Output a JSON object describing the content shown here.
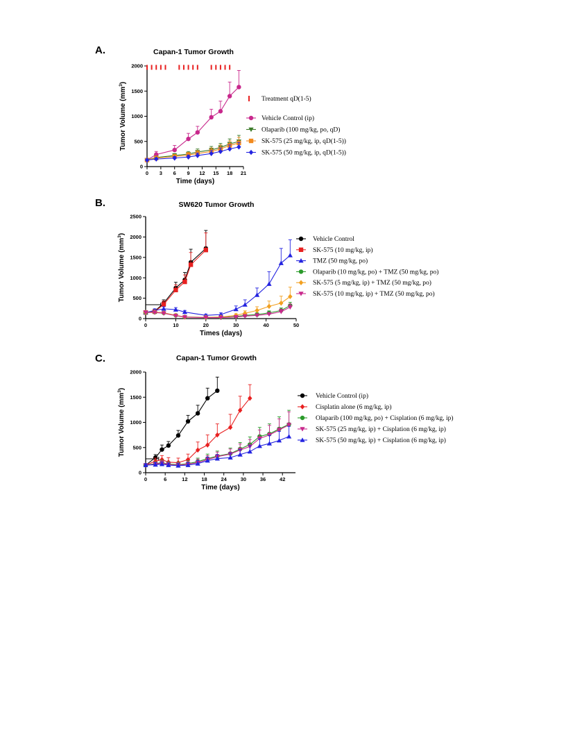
{
  "chart_data": [
    {
      "panel": "A.",
      "type": "line",
      "title": "Capan-1 Tumor Growth",
      "xlabel": "Time (days)",
      "ylabel_main": "Tumor Volume (mm",
      "ylabel_sup": "3",
      "ylabel_end": ")",
      "xlim": [
        0,
        21
      ],
      "ylim": [
        0,
        2000
      ],
      "xticks": [
        0,
        3,
        6,
        9,
        12,
        15,
        18,
        21
      ],
      "yticks": [
        0,
        500,
        1000,
        1500,
        2000
      ],
      "treatment_days": [
        0,
        1,
        2,
        3,
        4,
        7,
        8,
        9,
        10,
        11,
        14,
        15,
        16,
        17,
        18
      ],
      "treatment_label": "Treatment qD(1-5)",
      "series": [
        {
          "name": "Vehicle Control (ip)",
          "color": "#c8288c",
          "marker": "circle",
          "x": [
            0,
            2,
            6,
            9,
            11,
            14,
            16,
            18,
            20
          ],
          "y": [
            130,
            240,
            330,
            550,
            680,
            980,
            1100,
            1400,
            1580
          ],
          "err": [
            20,
            60,
            90,
            110,
            120,
            160,
            200,
            280,
            330
          ]
        },
        {
          "name": "Olaparib (100 mg/kg, po, qD)",
          "color": "#3a7a28",
          "marker": "triangle-down",
          "x": [
            0,
            2,
            6,
            9,
            11,
            14,
            16,
            18,
            20
          ],
          "y": [
            130,
            180,
            220,
            250,
            290,
            330,
            380,
            450,
            500
          ],
          "err": [
            20,
            30,
            40,
            50,
            60,
            70,
            80,
            100,
            120
          ]
        },
        {
          "name": "SK-575 (25 mg/kg, ip, qD(1-5))",
          "color": "#f28a1e",
          "marker": "square",
          "x": [
            0,
            2,
            6,
            9,
            11,
            14,
            16,
            18,
            20
          ],
          "y": [
            130,
            170,
            200,
            230,
            260,
            300,
            350,
            420,
            470
          ],
          "err": [
            20,
            30,
            40,
            50,
            60,
            70,
            80,
            90,
            110
          ]
        },
        {
          "name": "SK-575 (50 mg/kg, ip, qD(1-5))",
          "color": "#2323e0",
          "marker": "diamond",
          "x": [
            0,
            2,
            6,
            9,
            11,
            14,
            16,
            18,
            20
          ],
          "y": [
            130,
            150,
            170,
            190,
            220,
            260,
            300,
            350,
            390
          ],
          "err": [
            20,
            25,
            30,
            40,
            50,
            60,
            70,
            80,
            90
          ]
        }
      ]
    },
    {
      "panel": "B.",
      "type": "line",
      "title": "SW620 Tumor Growth",
      "xlabel": "Times (days)",
      "ylabel_main": "Tumor Volume (mm",
      "ylabel_sup": "3",
      "ylabel_end": ")",
      "xlim": [
        0,
        50
      ],
      "ylim": [
        0,
        2500
      ],
      "xticks": [
        0,
        10,
        20,
        30,
        40,
        50
      ],
      "yticks": [
        0,
        500,
        1000,
        1500,
        2000,
        2500
      ],
      "dosing_bar_days": [
        0,
        5
      ],
      "series": [
        {
          "name": "Vehicle Control",
          "color": "#000000",
          "marker": "circle",
          "x": [
            0,
            3,
            6,
            10,
            13,
            15,
            20
          ],
          "y": [
            150,
            180,
            380,
            750,
            950,
            1380,
            1720
          ],
          "err": [
            30,
            40,
            80,
            140,
            180,
            320,
            440
          ]
        },
        {
          "name": "SK-575 (10 mg/kg, ip)",
          "color": "#e82020",
          "marker": "square",
          "x": [
            0,
            3,
            6,
            10,
            13,
            15,
            20
          ],
          "y": [
            150,
            170,
            350,
            700,
            900,
            1320,
            1680
          ],
          "err": [
            30,
            40,
            80,
            130,
            170,
            300,
            420
          ]
        },
        {
          "name": "TMZ (50 mg/kg, po)",
          "color": "#2323e0",
          "marker": "triangle-up",
          "x": [
            0,
            3,
            6,
            10,
            13,
            20,
            25,
            30,
            33,
            37,
            41,
            45,
            48
          ],
          "y": [
            150,
            200,
            240,
            220,
            160,
            80,
            100,
            230,
            340,
            580,
            850,
            1360,
            1550
          ],
          "err": [
            30,
            40,
            50,
            50,
            40,
            30,
            40,
            80,
            120,
            170,
            300,
            360,
            380
          ]
        },
        {
          "name": "Olaparib (10 mg/kg, po) + TMZ (50 mg/kg, po)",
          "color": "#2a9a2a",
          "marker": "circle",
          "x": [
            0,
            3,
            6,
            10,
            13,
            20,
            25,
            30,
            33,
            37,
            41,
            45,
            48
          ],
          "y": [
            150,
            160,
            140,
            80,
            40,
            30,
            30,
            50,
            80,
            100,
            140,
            200,
            320
          ],
          "err": [
            30,
            30,
            30,
            20,
            15,
            10,
            10,
            20,
            30,
            40,
            50,
            60,
            80
          ]
        },
        {
          "name": "SK-575 (5 mg/kg, ip) + TMZ (50 mg/kg, po)",
          "color": "#f2a020",
          "marker": "diamond",
          "x": [
            0,
            3,
            6,
            10,
            13,
            20,
            25,
            30,
            33,
            37,
            41,
            45,
            48
          ],
          "y": [
            150,
            160,
            140,
            80,
            40,
            30,
            40,
            80,
            130,
            200,
            300,
            380,
            540
          ],
          "err": [
            30,
            30,
            30,
            20,
            15,
            10,
            20,
            40,
            60,
            90,
            130,
            170,
            230
          ]
        },
        {
          "name": "SK-575 (10 mg/kg, ip) + TMZ (50 mg/kg, po)",
          "color": "#c8288c",
          "marker": "triangle-down",
          "x": [
            0,
            3,
            6,
            10,
            13,
            20,
            25,
            30,
            33,
            37,
            41,
            45,
            48
          ],
          "y": [
            150,
            150,
            130,
            70,
            35,
            25,
            25,
            40,
            60,
            80,
            110,
            170,
            280
          ],
          "err": [
            30,
            30,
            30,
            20,
            15,
            10,
            10,
            20,
            25,
            30,
            40,
            60,
            80
          ]
        }
      ]
    },
    {
      "panel": "C.",
      "type": "line",
      "title": "Capan-1 Tumor Growth",
      "xlabel": "Time (days)",
      "ylabel_main": "Tumor Volume (mm",
      "ylabel_sup": "3",
      "ylabel_end": ")",
      "xlim": [
        0,
        46
      ],
      "ylim": [
        0,
        2000
      ],
      "xticks": [
        0,
        6,
        12,
        18,
        24,
        30,
        36,
        42
      ],
      "yticks": [
        0,
        500,
        1000,
        1500,
        2000
      ],
      "dosing_bar_days": [
        0,
        4
      ],
      "series": [
        {
          "name": "Vehicle Control (ip)",
          "color": "#000000",
          "marker": "circle",
          "x": [
            0,
            3,
            5,
            7,
            10,
            13,
            16,
            19,
            22
          ],
          "y": [
            150,
            300,
            460,
            540,
            740,
            1020,
            1180,
            1480,
            1630
          ],
          "err": [
            30,
            60,
            90,
            80,
            100,
            120,
            160,
            200,
            270
          ]
        },
        {
          "name": "Cisplatin alone (6 mg/kg, ip)",
          "color": "#e82020",
          "marker": "diamond",
          "x": [
            0,
            3,
            5,
            7,
            10,
            13,
            16,
            19,
            22,
            26,
            29,
            32
          ],
          "y": [
            150,
            230,
            260,
            210,
            200,
            260,
            450,
            550,
            750,
            900,
            1240,
            1480
          ],
          "err": [
            30,
            60,
            80,
            90,
            90,
            110,
            160,
            200,
            220,
            260,
            280,
            270
          ]
        },
        {
          "name": "Olaparib (100 mg/kg, po) + Cisplation (6 mg/kg, ip)",
          "color": "#2a9a2a",
          "marker": "circle",
          "x": [
            0,
            3,
            5,
            7,
            10,
            13,
            16,
            19,
            22,
            26,
            29,
            32,
            35,
            38,
            41,
            44
          ],
          "y": [
            150,
            180,
            200,
            170,
            160,
            180,
            220,
            280,
            330,
            380,
            470,
            560,
            720,
            770,
            870,
            960
          ],
          "err": [
            30,
            40,
            50,
            50,
            50,
            60,
            70,
            90,
            100,
            110,
            130,
            150,
            180,
            200,
            240,
            280
          ]
        },
        {
          "name": "SK-575 (25 mg/kg, ip) + Cisplation (6 mg/kg, ip)",
          "color": "#c8288c",
          "marker": "triangle-down",
          "x": [
            0,
            3,
            5,
            7,
            10,
            13,
            16,
            19,
            22,
            26,
            29,
            32,
            35,
            38,
            41,
            44
          ],
          "y": [
            150,
            170,
            190,
            160,
            150,
            170,
            200,
            260,
            320,
            370,
            450,
            520,
            680,
            750,
            850,
            950
          ],
          "err": [
            30,
            40,
            50,
            50,
            50,
            60,
            70,
            80,
            90,
            100,
            120,
            140,
            170,
            190,
            220,
            260
          ]
        },
        {
          "name": "SK-575 (50 mg/kg, ip) + Cisplation (6 mg/kg, ip)",
          "color": "#2323e0",
          "marker": "triangle-up",
          "x": [
            0,
            3,
            5,
            7,
            10,
            13,
            16,
            19,
            22,
            26,
            29,
            32,
            35,
            38,
            41,
            44
          ],
          "y": [
            150,
            160,
            170,
            150,
            140,
            150,
            180,
            240,
            280,
            300,
            360,
            420,
            530,
            580,
            640,
            720
          ],
          "err": [
            30,
            40,
            40,
            40,
            40,
            50,
            60,
            70,
            80,
            90,
            100,
            120,
            140,
            160,
            180,
            200
          ]
        }
      ]
    }
  ]
}
